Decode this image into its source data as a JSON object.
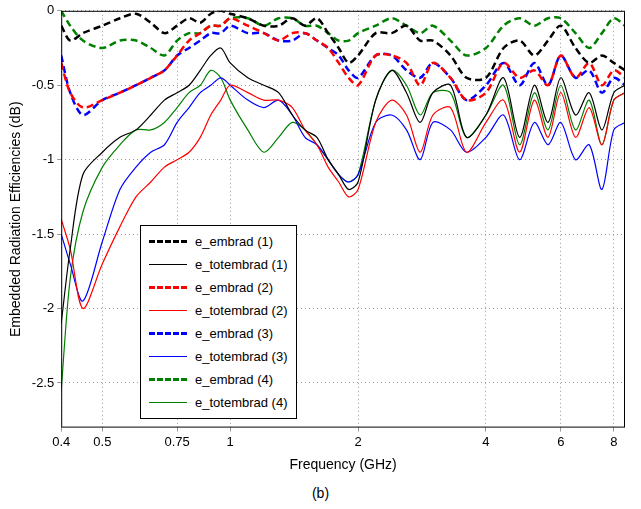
{
  "chart_data": {
    "type": "line",
    "caption": "(b)",
    "x_label": "Frequency (GHz)",
    "y_label": "Embedded Radiation Efficiencies (dB)",
    "log": "x",
    "grid": true,
    "legend": "lower left",
    "xlim": [
      0.4,
      8.5
    ],
    "xticks": [
      0.4,
      0.5,
      0.75,
      1,
      2,
      4,
      6,
      8
    ],
    "ylim": [
      -2.8,
      0
    ],
    "yticks": [
      -2.5,
      -2,
      -1.5,
      -1,
      -0.5,
      0
    ],
    "x": [
      0.4,
      0.42,
      0.45,
      0.5,
      0.55,
      0.6,
      0.65,
      0.7,
      0.75,
      0.8,
      0.85,
      0.9,
      0.95,
      1.0,
      1.1,
      1.2,
      1.3,
      1.4,
      1.5,
      1.6,
      1.7,
      1.8,
      1.9,
      2.0,
      2.2,
      2.4,
      2.6,
      2.8,
      3.0,
      3.3,
      3.6,
      4.0,
      4.4,
      4.8,
      5.2,
      5.6,
      6.0,
      6.5,
      7.0,
      7.5,
      8.0,
      8.5
    ],
    "series": [
      {
        "name": "e_embrad (1)",
        "color": "#000000",
        "line_style": "dashed",
        "values": [
          -0.1,
          -0.2,
          -0.15,
          -0.1,
          -0.05,
          -0.02,
          -0.08,
          -0.15,
          -0.1,
          -0.05,
          -0.08,
          -0.02,
          0,
          -0.02,
          -0.05,
          -0.1,
          -0.1,
          -0.05,
          -0.1,
          -0.05,
          -0.15,
          -0.25,
          -0.35,
          -0.3,
          -0.15,
          -0.15,
          -0.1,
          -0.2,
          -0.2,
          -0.3,
          -0.45,
          -0.45,
          -0.25,
          -0.2,
          -0.3,
          -0.2,
          -0.1,
          -0.25,
          -0.35,
          -0.3,
          -0.35,
          -0.4
        ]
      },
      {
        "name": "e_totembrad (1)",
        "color": "#000000",
        "line_style": "solid",
        "values": [
          -2.1,
          -1.6,
          -1.1,
          -0.95,
          -0.85,
          -0.8,
          -0.7,
          -0.6,
          -0.55,
          -0.5,
          -0.4,
          -0.3,
          -0.25,
          -0.35,
          -0.45,
          -0.5,
          -0.55,
          -0.7,
          -0.8,
          -0.85,
          -1.0,
          -1.1,
          -1.2,
          -1.15,
          -0.6,
          -0.4,
          -0.55,
          -0.75,
          -0.55,
          -0.5,
          -0.85,
          -0.7,
          -0.45,
          -0.85,
          -0.5,
          -0.75,
          -0.45,
          -0.7,
          -0.55,
          -0.8,
          -0.55,
          -0.5
        ]
      },
      {
        "name": "e_embrad (2)",
        "color": "#ff0000",
        "line_style": "dashed",
        "values": [
          -0.35,
          -0.55,
          -0.65,
          -0.6,
          -0.55,
          -0.5,
          -0.45,
          -0.4,
          -0.3,
          -0.2,
          -0.15,
          -0.1,
          -0.1,
          -0.05,
          -0.1,
          -0.15,
          -0.2,
          -0.15,
          -0.15,
          -0.2,
          -0.25,
          -0.35,
          -0.45,
          -0.5,
          -0.3,
          -0.3,
          -0.35,
          -0.5,
          -0.35,
          -0.45,
          -0.6,
          -0.55,
          -0.35,
          -0.45,
          -0.4,
          -0.5,
          -0.3,
          -0.45,
          -0.35,
          -0.5,
          -0.4,
          -0.45
        ]
      },
      {
        "name": "e_totembrad (2)",
        "color": "#ff0000",
        "line_style": "solid",
        "values": [
          -1.4,
          -1.6,
          -2.0,
          -1.7,
          -1.45,
          -1.25,
          -1.15,
          -1.05,
          -1.0,
          -0.95,
          -0.85,
          -0.7,
          -0.6,
          -0.5,
          -0.55,
          -0.6,
          -0.6,
          -0.65,
          -0.8,
          -0.9,
          -1.05,
          -1.15,
          -1.25,
          -1.2,
          -0.75,
          -0.6,
          -0.7,
          -0.95,
          -0.7,
          -0.65,
          -0.95,
          -0.75,
          -0.6,
          -0.95,
          -0.6,
          -0.85,
          -0.55,
          -0.85,
          -0.65,
          -0.9,
          -0.6,
          -0.55
        ]
      },
      {
        "name": "e_embrad (3)",
        "color": "#0000ff",
        "line_style": "dashed",
        "values": [
          -0.3,
          -0.55,
          -0.7,
          -0.6,
          -0.55,
          -0.5,
          -0.45,
          -0.4,
          -0.3,
          -0.25,
          -0.2,
          -0.15,
          -0.15,
          -0.1,
          -0.15,
          -0.15,
          -0.2,
          -0.2,
          -0.15,
          -0.2,
          -0.25,
          -0.3,
          -0.4,
          -0.45,
          -0.3,
          -0.3,
          -0.4,
          -0.45,
          -0.35,
          -0.45,
          -0.6,
          -0.5,
          -0.35,
          -0.5,
          -0.35,
          -0.5,
          -0.3,
          -0.45,
          -0.4,
          -0.55,
          -0.45,
          -0.5
        ]
      },
      {
        "name": "e_totembrad (3)",
        "color": "#0000ff",
        "line_style": "solid",
        "values": [
          -1.5,
          -1.7,
          -1.95,
          -1.55,
          -1.2,
          -1.05,
          -0.95,
          -0.9,
          -0.75,
          -0.65,
          -0.55,
          -0.5,
          -0.45,
          -0.5,
          -0.6,
          -0.65,
          -0.6,
          -0.7,
          -0.85,
          -0.9,
          -1.0,
          -1.1,
          -1.15,
          -1.1,
          -0.75,
          -0.7,
          -0.8,
          -1.0,
          -0.75,
          -0.8,
          -0.95,
          -0.85,
          -0.7,
          -1.0,
          -0.75,
          -0.9,
          -0.75,
          -1.0,
          -0.9,
          -1.2,
          -0.8,
          -0.75
        ]
      },
      {
        "name": "e_embrad (4)",
        "color": "#008000",
        "line_style": "dashed",
        "values": [
          0,
          -0.1,
          -0.2,
          -0.25,
          -0.2,
          -0.2,
          -0.25,
          -0.3,
          -0.2,
          -0.15,
          -0.15,
          -0.1,
          -0.1,
          -0.05,
          -0.05,
          -0.1,
          -0.05,
          -0.05,
          -0.1,
          -0.1,
          -0.15,
          -0.2,
          -0.2,
          -0.15,
          -0.1,
          -0.05,
          -0.1,
          -0.15,
          -0.1,
          -0.2,
          -0.3,
          -0.25,
          -0.1,
          -0.05,
          -0.1,
          -0.05,
          -0.05,
          -0.15,
          -0.25,
          -0.15,
          -0.05,
          -0.1
        ]
      },
      {
        "name": "e_totembrad (4)",
        "color": "#008000",
        "line_style": "solid",
        "values": [
          -2.55,
          -1.8,
          -1.35,
          -1.05,
          -0.9,
          -0.8,
          -0.8,
          -0.75,
          -0.65,
          -0.55,
          -0.5,
          -0.4,
          -0.45,
          -0.6,
          -0.8,
          -0.95,
          -0.85,
          -0.75,
          -0.8,
          -0.9,
          -1.0,
          -1.1,
          -1.15,
          -1.1,
          -0.6,
          -0.4,
          -0.5,
          -0.7,
          -0.55,
          -0.55,
          -0.85,
          -0.7,
          -0.5,
          -0.9,
          -0.55,
          -0.8,
          -0.5,
          -0.8,
          -0.6,
          -0.9,
          -0.6,
          -0.55
        ]
      }
    ]
  }
}
